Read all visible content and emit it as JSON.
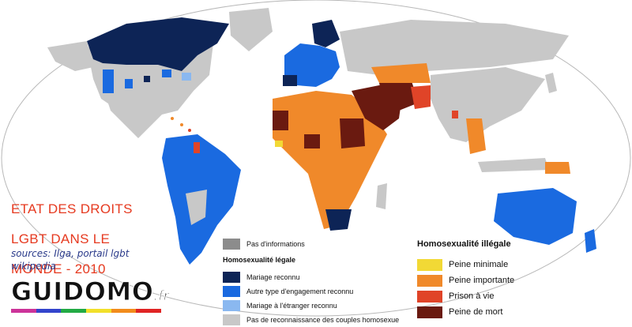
{
  "title": {
    "line1": "ETAT DES DROITS",
    "line2": "LGBT DANS LE",
    "line3": "MONDE - 2010"
  },
  "sources": {
    "line1": "sources: Ilga, portail lgbt",
    "line2": "wikipedia"
  },
  "brand": {
    "name": "GUIDOMO",
    "suffix": ".fr"
  },
  "brand_stripe_colors": [
    "#cc3399",
    "#3344cc",
    "#22aa44",
    "#f2e02a",
    "#f28c1c",
    "#e02424"
  ],
  "legend_legal": {
    "no_info": {
      "label": "Pas d'informations",
      "color": "#8c8c8c"
    },
    "heading": "Homosexualité légale",
    "items": [
      {
        "label": "Mariage reconnu",
        "color": "#0d2456"
      },
      {
        "label": "Autre type d'engagement reconnu",
        "color": "#1a6ae0"
      },
      {
        "label": "Mariage à l'étranger reconnu",
        "color": "#8ab8f0"
      },
      {
        "label": "Pas de reconnaissance des couples homosexue",
        "color": "#c8c8c8"
      }
    ]
  },
  "legend_illegal": {
    "heading": "Homosexualité illégale",
    "items": [
      {
        "label": "Peine minimale",
        "color": "#f2d935"
      },
      {
        "label": "Peine importante",
        "color": "#f0892a"
      },
      {
        "label": "Prison à vie",
        "color": "#e04428"
      },
      {
        "label": "Peine de mort",
        "color": "#6a1a10"
      }
    ]
  },
  "map_colors": {
    "ocean": "#ffffff",
    "no_recognition": "#c8c8c8",
    "marriage": "#0d2456",
    "partnership": "#1a6ae0",
    "abroad": "#8ab8f0",
    "minor_penalty": "#f2d935",
    "major_penalty": "#f0892a",
    "life_prison": "#e04428",
    "death": "#6a1a10"
  }
}
